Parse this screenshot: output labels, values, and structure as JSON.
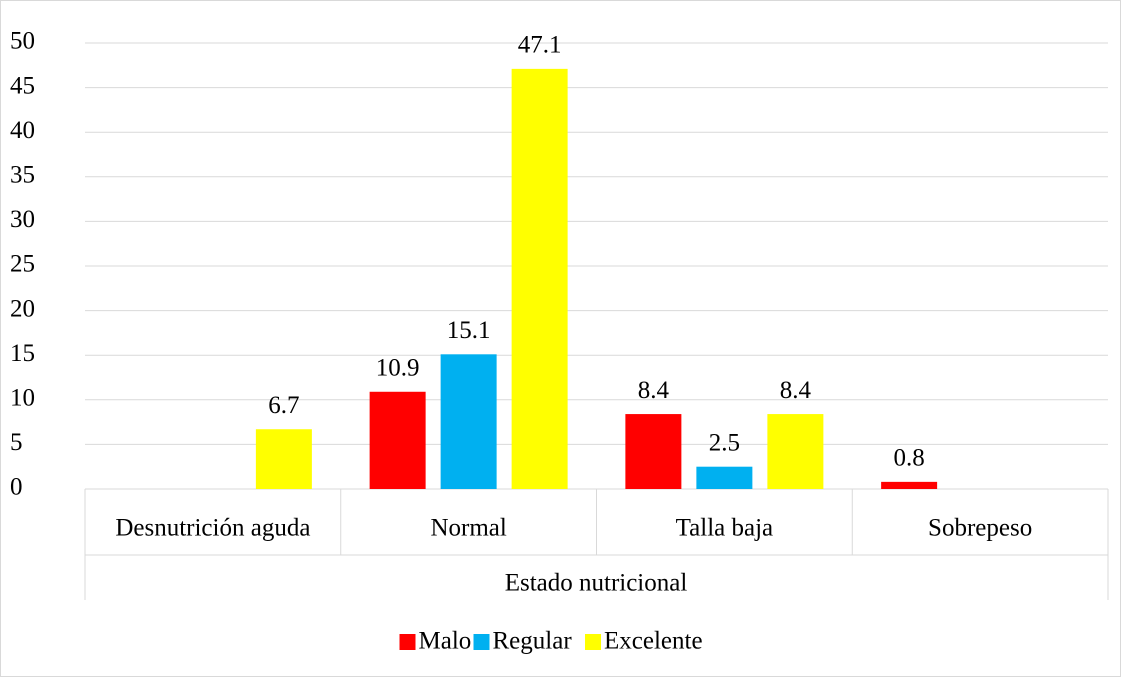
{
  "chart_data": {
    "type": "bar",
    "x_label": "Estado nutricional",
    "categories": [
      "Desnutrición aguda",
      "Normal",
      "Talla baja",
      "Sobrepeso"
    ],
    "series": [
      {
        "name": "Malo",
        "color": "#ff0000",
        "values": [
          null,
          10.9,
          8.4,
          0.8
        ]
      },
      {
        "name": "Regular",
        "color": "#00b0f0",
        "values": [
          null,
          15.1,
          2.5,
          null
        ]
      },
      {
        "name": "Excelente",
        "color": "#ffff00",
        "values": [
          6.7,
          47.1,
          8.4,
          null
        ]
      }
    ],
    "ylim": [
      0,
      50
    ],
    "yticks": [
      0,
      5,
      10,
      15,
      20,
      25,
      30,
      35,
      40,
      45,
      50
    ],
    "grid": true,
    "legend": "bottom"
  }
}
